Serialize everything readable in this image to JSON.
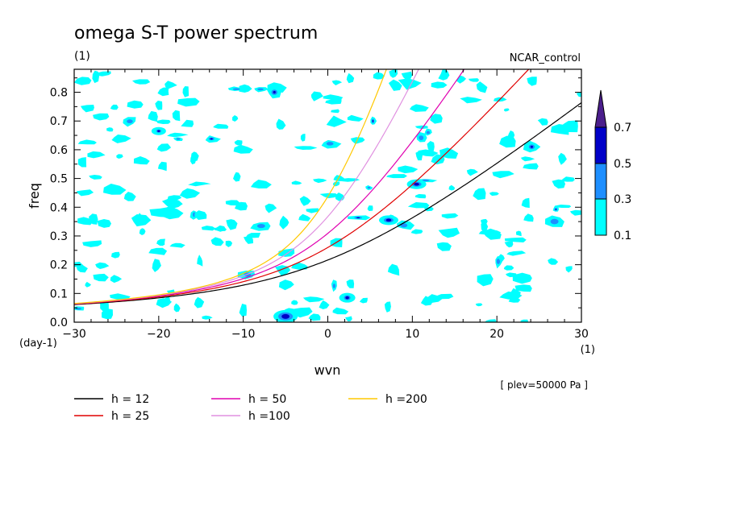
{
  "title": "omega S-T power spectrum",
  "units_label": "(1)",
  "run_name": "NCAR_control",
  "plevel_note": "[ plev=50000 Pa ]",
  "chart_data": {
    "type": "contour",
    "xlabel": "wvn",
    "ylabel": "freq",
    "x_unit_label": "(1)",
    "y_unit_label": "(day-1)",
    "xlim": [
      -30,
      30
    ],
    "ylim": [
      0,
      0.88
    ],
    "xticks": [
      -30,
      -20,
      -10,
      0,
      10,
      20,
      30
    ],
    "yticks": [
      0.0,
      0.1,
      0.2,
      0.3,
      0.4,
      0.5,
      0.6,
      0.7,
      0.8
    ],
    "colorbar": {
      "levels": [
        0.1,
        0.3,
        0.5,
        0.7
      ],
      "level_labels": [
        "0.1",
        "0.3",
        "0.5",
        "0.7"
      ],
      "colors": [
        "#00ffff",
        "#1e8fff",
        "#0000c8",
        "#4b1e8c"
      ]
    },
    "dispersion_curves": [
      {
        "label": "h = 12",
        "color": "#000000",
        "h": 12
      },
      {
        "label": "h = 25",
        "color": "#e00000",
        "h": 25
      },
      {
        "label": "h = 50",
        "color": "#e000b0",
        "h": 50
      },
      {
        "label": "h =100",
        "color": "#e090e0",
        "h": 100
      },
      {
        "label": "h =200",
        "color": "#ffc800",
        "h": 200
      }
    ]
  }
}
